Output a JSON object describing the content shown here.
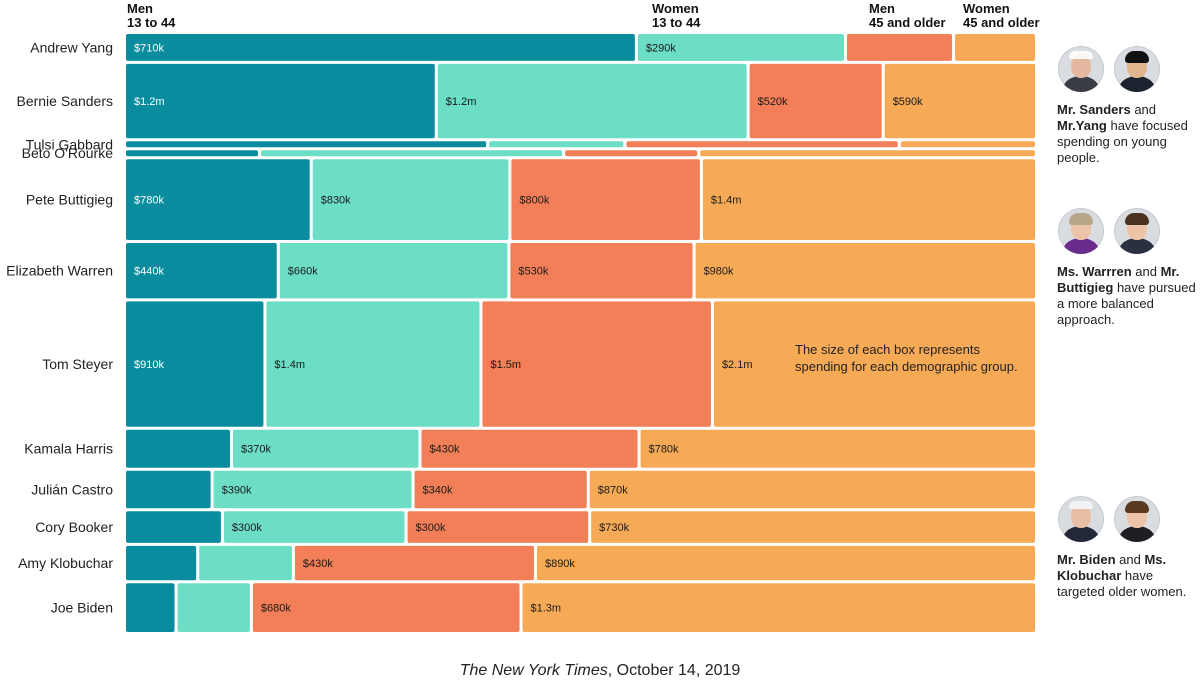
{
  "headers": [
    {
      "line1": "Men",
      "line2": "13 to 44"
    },
    {
      "line1": "Women",
      "line2": "13 to 44"
    },
    {
      "line1": "Men",
      "line2": "45 and older"
    },
    {
      "line1": "Women",
      "line2": "45 and older"
    }
  ],
  "colors": {
    "men_13_44": "#0a8c9f",
    "women_13_44": "#6cdec6",
    "men_45_plus": "#f27f57",
    "women_45_plus": "#f6aa55"
  },
  "chart_data": {
    "type": "mosaic",
    "unit": "USD ad spending",
    "groups": [
      "Men 13 to 44",
      "Women 13 to 44",
      "Men 45 and older",
      "Women 45 and older"
    ],
    "rows": [
      {
        "name": "Andrew Yang",
        "labels": [
          "$710k",
          "$290k",
          "",
          ""
        ],
        "values": [
          710000,
          290000,
          150000,
          115000
        ]
      },
      {
        "name": "Bernie Sanders",
        "labels": [
          "$1.2m",
          "$1.2m",
          "$520k",
          "$590k"
        ],
        "values": [
          1200000,
          1200000,
          520000,
          590000
        ]
      },
      {
        "name": "Tulsi Gabbard",
        "labels": [
          "",
          "",
          "",
          ""
        ],
        "values": [
          45000,
          17000,
          34000,
          17000
        ]
      },
      {
        "name": "Beto O'Rourke",
        "labels": [
          "",
          "",
          "",
          ""
        ],
        "values": [
          40000,
          90000,
          40000,
          100000
        ]
      },
      {
        "name": "Pete Buttigieg",
        "labels": [
          "$780k",
          "$830k",
          "$800k",
          "$1.4m"
        ],
        "values": [
          780000,
          830000,
          800000,
          1400000
        ]
      },
      {
        "name": "Elizabeth Warren",
        "labels": [
          "$440k",
          "$660k",
          "$530k",
          "$980k"
        ],
        "values": [
          440000,
          660000,
          530000,
          980000
        ]
      },
      {
        "name": "Tom Steyer",
        "labels": [
          "$910k",
          "$1.4m",
          "$1.5m",
          "$2.1m"
        ],
        "values": [
          910000,
          1400000,
          1500000,
          2100000
        ]
      },
      {
        "name": "Kamala Harris",
        "labels": [
          "",
          "$370k",
          "$430k",
          "$780k"
        ],
        "values": [
          210000,
          370000,
          430000,
          780000
        ]
      },
      {
        "name": "Julián Castro",
        "labels": [
          "",
          "$390k",
          "$340k",
          "$870k"
        ],
        "values": [
          170000,
          390000,
          340000,
          870000
        ]
      },
      {
        "name": "Cory Booker",
        "labels": [
          "",
          "$300k",
          "$300k",
          "$730k"
        ],
        "values": [
          160000,
          300000,
          300000,
          730000
        ]
      },
      {
        "name": "Amy Klobuchar",
        "labels": [
          "",
          "",
          "$430k",
          "$890k"
        ],
        "values": [
          130000,
          170000,
          430000,
          890000
        ]
      },
      {
        "name": "Joe Biden",
        "labels": [
          "",
          "",
          "$680k",
          "$1.3m"
        ],
        "values": [
          130000,
          190000,
          680000,
          1300000
        ]
      }
    ],
    "annotation": "The size of each box represents spending for each demographic group."
  },
  "notes": [
    {
      "faces": [
        "Mr. Sanders",
        "Mr. Yang"
      ],
      "strong1": "Mr. Sanders",
      "mid": " and ",
      "strong2": "Mr.Yang",
      "rest": " have focused spending on young people."
    },
    {
      "faces": [
        "Ms. Warren",
        "Mr. Buttigieg"
      ],
      "strong1": "Ms. Warrren",
      "mid": " and ",
      "strong2": "Mr. Buttigieg",
      "rest": " have pursued a more balanced approach."
    },
    {
      "faces": [
        "Mr. Biden",
        "Ms. Klobuchar"
      ],
      "strong1": "Mr. Biden",
      "mid": " and ",
      "strong2": "Ms. Klobuchar",
      "rest": " have targeted older women."
    }
  ],
  "source": {
    "publication": "The New York Times",
    "date": ", October 14, 2019"
  }
}
